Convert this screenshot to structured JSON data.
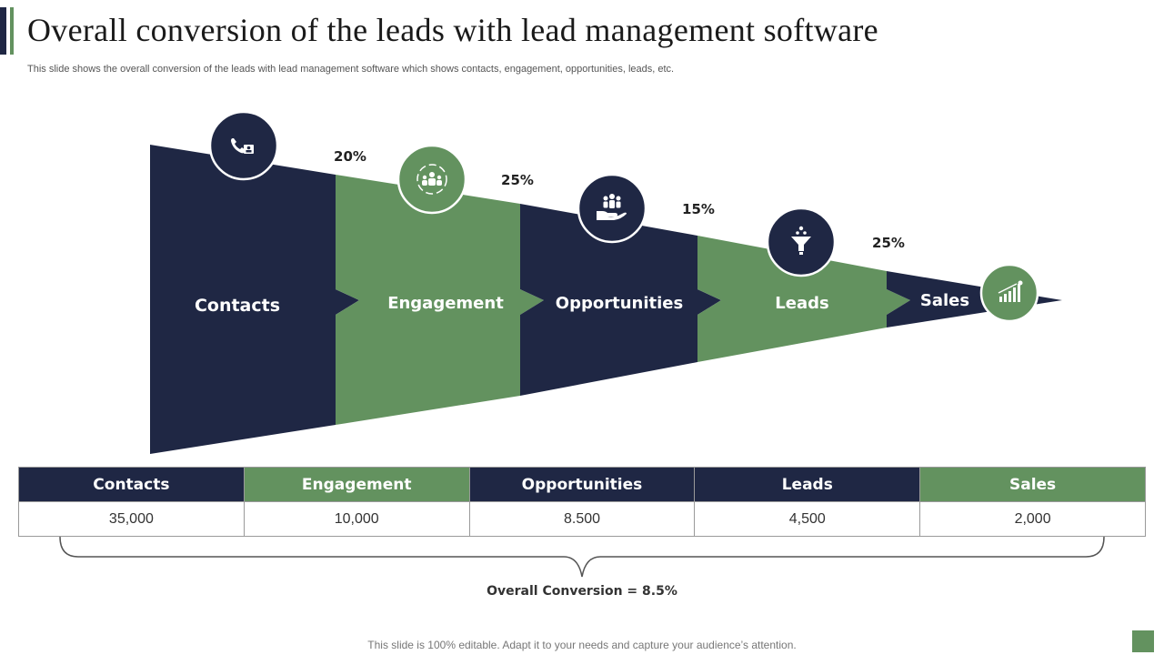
{
  "header": {
    "title": "Overall conversion of the leads with lead management software",
    "subtitle": "This slide shows the overall conversion of the leads with lead management software which shows contacts, engagement, opportunities, leads, etc."
  },
  "colors": {
    "dark": "#1f2744",
    "green": "#63925f"
  },
  "funnel": {
    "stages": [
      {
        "label": "Contacts",
        "icon": "phone-contact-icon"
      },
      {
        "label": "Engagement",
        "icon": "team-engagement-icon"
      },
      {
        "label": "Opportunities",
        "icon": "hand-people-icon"
      },
      {
        "label": "Leads",
        "icon": "funnel-filter-icon"
      },
      {
        "label": "Sales",
        "icon": "growth-chart-icon"
      }
    ],
    "rates": [
      "20%",
      "25%",
      "15%",
      "25%"
    ]
  },
  "table": {
    "headers": [
      "Contacts",
      "Engagement",
      "Opportunities",
      "Leads",
      "Sales"
    ],
    "values": [
      "35,000",
      "10,000",
      "8.500",
      "4,500",
      "2,000"
    ]
  },
  "summary": {
    "overall": "Overall Conversion = 8.5%"
  },
  "footer": {
    "text": "This slide is 100% editable. Adapt it to your needs and capture your audience’s attention."
  }
}
